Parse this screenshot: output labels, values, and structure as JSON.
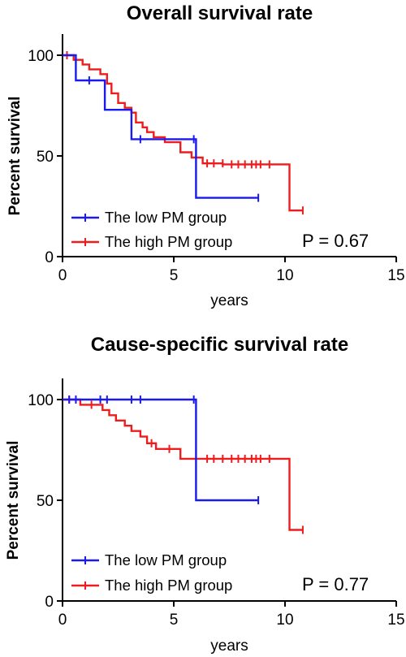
{
  "chart_data": [
    {
      "type": "line",
      "title": "Overall survival rate",
      "xlabel": "years",
      "ylabel": "Percent survival",
      "xlim": [
        0,
        15
      ],
      "ylim": [
        0,
        100
      ],
      "x_ticks": [
        0,
        5,
        10,
        15
      ],
      "y_ticks": [
        0,
        50,
        100
      ],
      "legend": "bottom-left",
      "annotation": "P = 0.67",
      "series": [
        {
          "name": "The low PM group",
          "color": "#1a1aee",
          "steps": [
            [
              0,
              100
            ],
            [
              0.6,
              100
            ],
            [
              0.6,
              87.5
            ],
            [
              1.9,
              87.5
            ],
            [
              1.9,
              72.9
            ],
            [
              3.1,
              72.9
            ],
            [
              3.1,
              58.3
            ],
            [
              6.0,
              58.3
            ],
            [
              6.0,
              29.2
            ],
            [
              8.8,
              29.2
            ]
          ],
          "censored": [
            [
              1.2,
              87.5
            ],
            [
              3.5,
              58.3
            ],
            [
              5.9,
              58.3
            ],
            [
              8.8,
              29.2
            ]
          ]
        },
        {
          "name": "The high PM group",
          "color": "#ee1c1c",
          "steps": [
            [
              0,
              100
            ],
            [
              0.5,
              100
            ],
            [
              0.5,
              97.7
            ],
            [
              0.9,
              97.7
            ],
            [
              0.9,
              95.4
            ],
            [
              1.2,
              95.4
            ],
            [
              1.2,
              93.0
            ],
            [
              1.7,
              93.0
            ],
            [
              1.7,
              90.6
            ],
            [
              2.0,
              90.6
            ],
            [
              2.0,
              85.9
            ],
            [
              2.2,
              85.9
            ],
            [
              2.2,
              81.1
            ],
            [
              2.5,
              81.1
            ],
            [
              2.5,
              76.3
            ],
            [
              2.8,
              76.3
            ],
            [
              2.8,
              73.9
            ],
            [
              3.1,
              73.9
            ],
            [
              3.1,
              71.5
            ],
            [
              3.3,
              71.5
            ],
            [
              3.3,
              66.6
            ],
            [
              3.6,
              66.6
            ],
            [
              3.6,
              64.2
            ],
            [
              3.8,
              64.2
            ],
            [
              3.8,
              61.8
            ],
            [
              4.1,
              61.8
            ],
            [
              4.1,
              59.3
            ],
            [
              4.6,
              59.3
            ],
            [
              4.6,
              56.8
            ],
            [
              5.3,
              56.8
            ],
            [
              5.3,
              51.8
            ],
            [
              5.8,
              51.8
            ],
            [
              5.8,
              49.2
            ],
            [
              6.3,
              49.2
            ],
            [
              6.3,
              46.3
            ],
            [
              7.2,
              46.3
            ],
            [
              7.2,
              45.8
            ],
            [
              10.2,
              45.8
            ],
            [
              10.2,
              22.9
            ],
            [
              10.8,
              22.9
            ]
          ],
          "censored": [
            [
              0.2,
              100
            ],
            [
              6.5,
              46.3
            ],
            [
              6.8,
              46.3
            ],
            [
              7.2,
              46.3
            ],
            [
              7.6,
              45.8
            ],
            [
              7.9,
              45.8
            ],
            [
              8.2,
              45.8
            ],
            [
              8.5,
              45.8
            ],
            [
              8.7,
              45.8
            ],
            [
              8.9,
              45.8
            ],
            [
              9.3,
              45.8
            ],
            [
              10.8,
              22.9
            ]
          ]
        }
      ]
    },
    {
      "type": "line",
      "title": "Cause-specific survival rate",
      "xlabel": "years",
      "ylabel": "Percent survival",
      "xlim": [
        0,
        15
      ],
      "ylim": [
        0,
        100
      ],
      "x_ticks": [
        0,
        5,
        10,
        15
      ],
      "y_ticks": [
        0,
        50,
        100
      ],
      "legend": "bottom-left",
      "annotation": "P = 0.77",
      "series": [
        {
          "name": "The low PM group",
          "color": "#1a1aee",
          "steps": [
            [
              0,
              100
            ],
            [
              6.0,
              100
            ],
            [
              6.0,
              50
            ],
            [
              8.8,
              50
            ]
          ],
          "censored": [
            [
              0.3,
              100
            ],
            [
              0.6,
              100
            ],
            [
              1.7,
              100
            ],
            [
              2.0,
              100
            ],
            [
              3.1,
              100
            ],
            [
              3.5,
              100
            ],
            [
              5.9,
              100
            ],
            [
              8.8,
              50
            ]
          ]
        },
        {
          "name": "The high PM group",
          "color": "#ee1c1c",
          "steps": [
            [
              0,
              100
            ],
            [
              0.8,
              100
            ],
            [
              0.8,
              97.4
            ],
            [
              1.8,
              97.4
            ],
            [
              1.8,
              94.8
            ],
            [
              2.1,
              94.8
            ],
            [
              2.1,
              92.2
            ],
            [
              2.4,
              92.2
            ],
            [
              2.4,
              89.6
            ],
            [
              2.8,
              89.6
            ],
            [
              2.8,
              87.0
            ],
            [
              3.1,
              87.0
            ],
            [
              3.1,
              84.4
            ],
            [
              3.5,
              84.4
            ],
            [
              3.5,
              81.6
            ],
            [
              3.8,
              81.6
            ],
            [
              3.8,
              78.3
            ],
            [
              4.2,
              78.3
            ],
            [
              4.2,
              75.5
            ],
            [
              5.3,
              75.5
            ],
            [
              5.3,
              70.6
            ],
            [
              10.2,
              70.6
            ],
            [
              10.2,
              35.3
            ],
            [
              10.8,
              35.3
            ]
          ],
          "censored": [
            [
              0.3,
              100
            ],
            [
              1.3,
              97.4
            ],
            [
              4.0,
              78.3
            ],
            [
              4.8,
              75.5
            ],
            [
              6.5,
              70.6
            ],
            [
              6.8,
              70.6
            ],
            [
              7.2,
              70.6
            ],
            [
              7.6,
              70.6
            ],
            [
              7.9,
              70.6
            ],
            [
              8.2,
              70.6
            ],
            [
              8.5,
              70.6
            ],
            [
              8.7,
              70.6
            ],
            [
              8.9,
              70.6
            ],
            [
              9.3,
              70.6
            ],
            [
              10.8,
              35.3
            ]
          ]
        }
      ]
    }
  ]
}
